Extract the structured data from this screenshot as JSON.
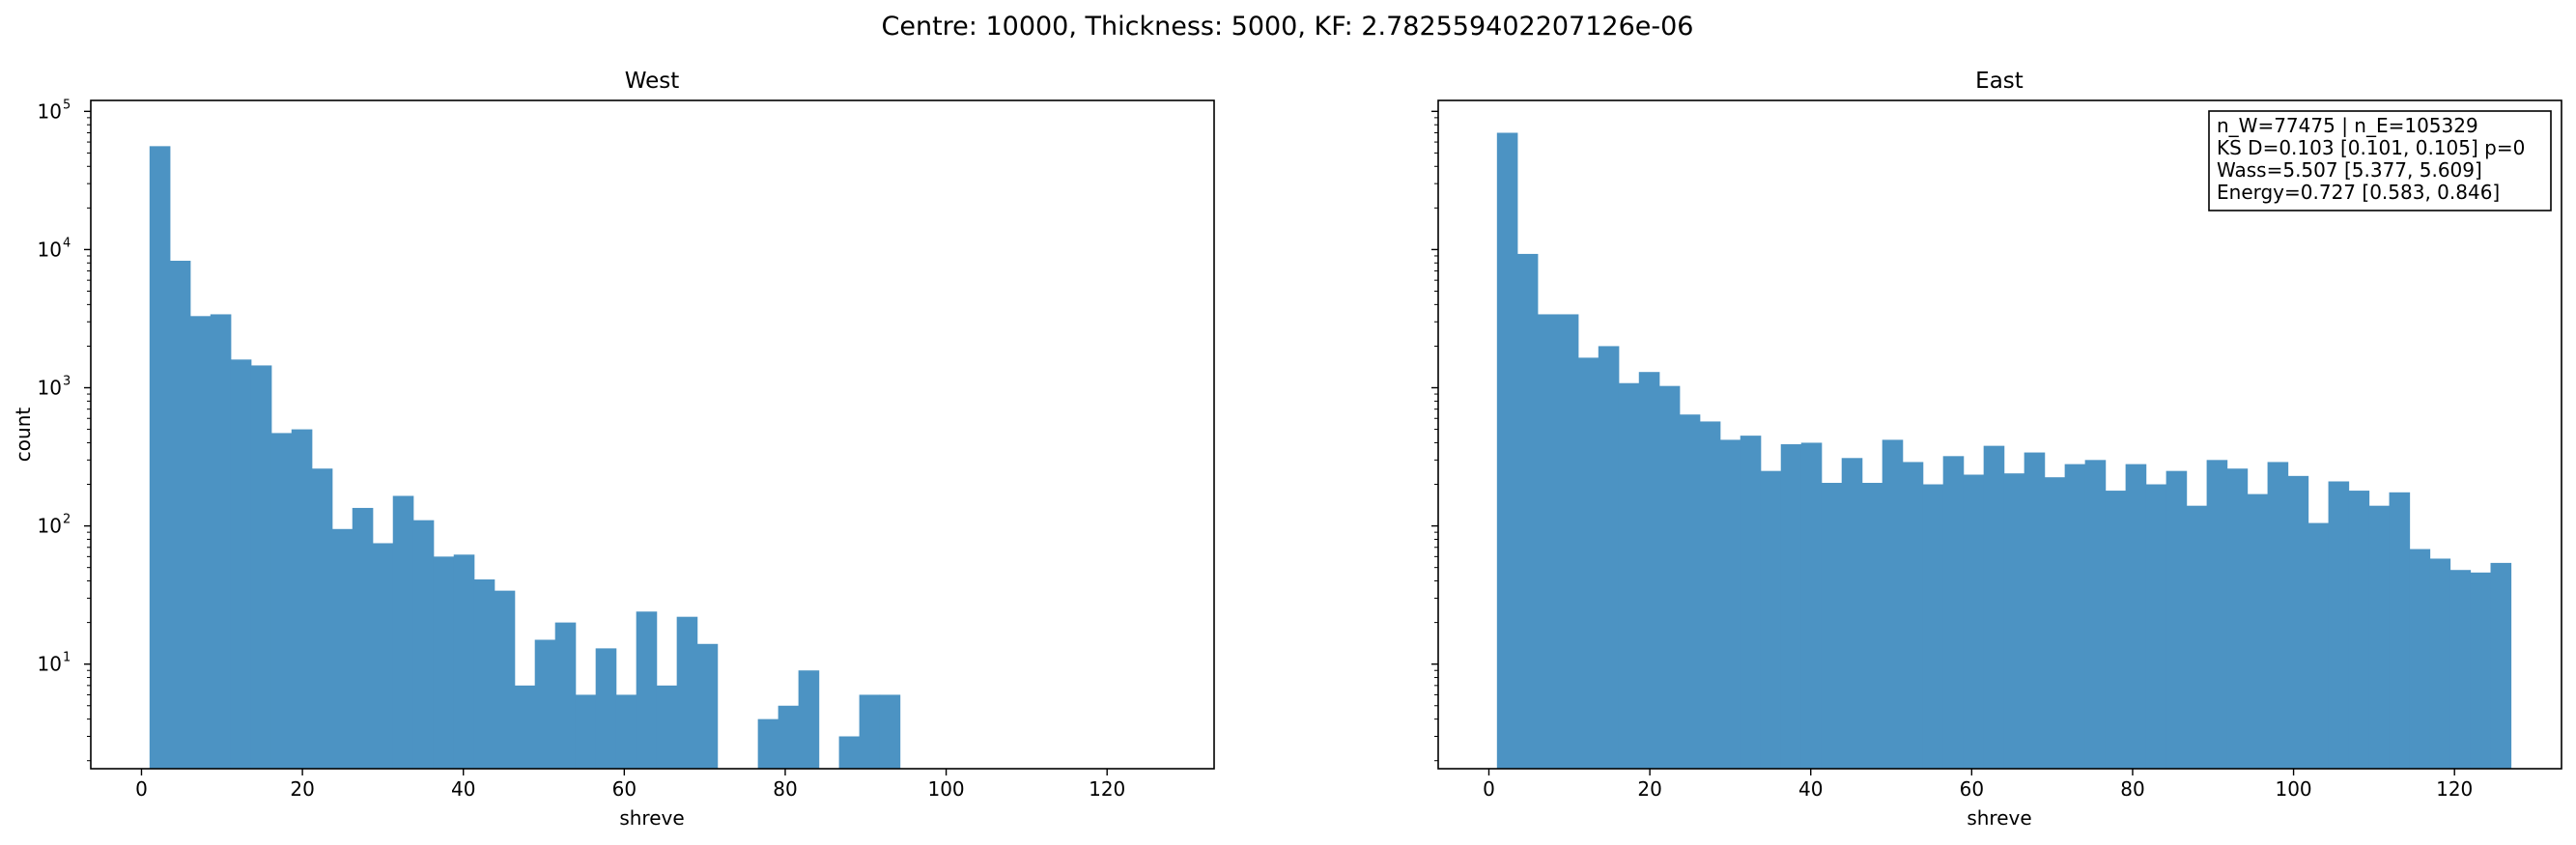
{
  "suptitle": "Centre: 10000, Thickness: 5000, KF: 2.782559402207126e-06",
  "chart_data": [
    {
      "type": "bar",
      "title": "West",
      "xlabel": "shreve",
      "ylabel": "count",
      "yscale": "log",
      "xlim": [
        -6.3,
        133.3
      ],
      "ylim": [
        1.75,
        120000
      ],
      "xticks": [
        "0",
        "20",
        "40",
        "60",
        "80",
        "100",
        "120"
      ],
      "yticks": [
        {
          "base": "10",
          "exp": "1"
        },
        {
          "base": "10",
          "exp": "2"
        },
        {
          "base": "10",
          "exp": "3"
        },
        {
          "base": "10",
          "exp": "4"
        },
        {
          "base": "10",
          "exp": "5"
        }
      ],
      "bin_start": 1,
      "bin_width": 2.52,
      "values": [
        56000,
        8300,
        3300,
        3400,
        1600,
        1450,
        470,
        500,
        260,
        95,
        135,
        75,
        165,
        110,
        60,
        62,
        41,
        34,
        7,
        15,
        20,
        6,
        13,
        6,
        24,
        7,
        22,
        14,
        0,
        0,
        4,
        5,
        9,
        0,
        3,
        6,
        6,
        0,
        0,
        0,
        0,
        0,
        0,
        0,
        0,
        0,
        0,
        0,
        0,
        0
      ],
      "color": "#4c93c3"
    },
    {
      "type": "bar",
      "title": "East",
      "xlabel": "shreve",
      "ylabel": "",
      "yscale": "log",
      "xlim": [
        -6.3,
        133.3
      ],
      "ylim": [
        1.75,
        120000
      ],
      "xticks": [
        "0",
        "20",
        "40",
        "60",
        "80",
        "100",
        "120"
      ],
      "bin_start": 1,
      "bin_width": 2.52,
      "values": [
        70000,
        9300,
        3400,
        3400,
        1650,
        2000,
        1080,
        1300,
        1030,
        640,
        570,
        420,
        450,
        250,
        390,
        400,
        205,
        310,
        205,
        420,
        290,
        200,
        320,
        235,
        380,
        240,
        340,
        225,
        280,
        300,
        180,
        280,
        200,
        250,
        140,
        300,
        260,
        170,
        290,
        230,
        105,
        210,
        180,
        140,
        175,
        68,
        58,
        48,
        46,
        54
      ],
      "color": "#4c93c3",
      "annotation": [
        "n_W=77475 | n_E=105329",
        "KS D=0.103 [0.101, 0.105]  p=0",
        "Wass=5.507 [5.377, 5.609]",
        "Energy=0.727 [0.583, 0.846]"
      ]
    }
  ]
}
